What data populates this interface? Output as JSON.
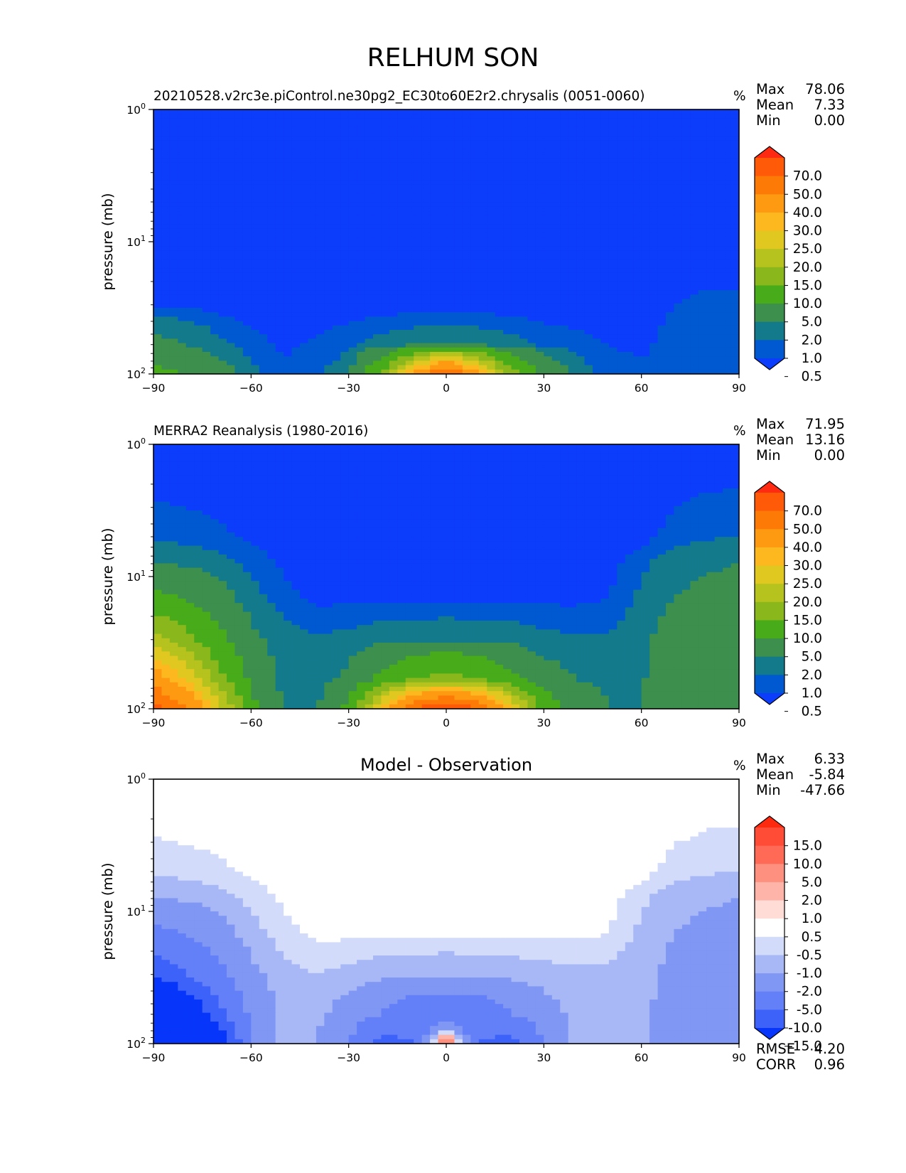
{
  "figure_title": "RELHUM SON",
  "chart_data": [
    {
      "type": "heatmap",
      "panel": "test",
      "title": "20210528.v2rc3e.piControl.ne30pg2_EC30to60E2r2.chrysalis (0051-0060)",
      "units": "%",
      "xlabel": "",
      "ylabel": "pressure (mb)",
      "xlim": [
        -90,
        90
      ],
      "ylim": [
        100,
        1
      ],
      "y_scale": "log",
      "xticks": [
        "−90",
        "−60",
        "−30",
        "0",
        "30",
        "60",
        "90"
      ],
      "yticks": [
        "10^0",
        "10^1",
        "10^2"
      ],
      "stats": [
        {
          "label": "Max",
          "value": "78.06"
        },
        {
          "label": "Mean",
          "value": "7.33"
        },
        {
          "label": "Min",
          "value": "0.00"
        }
      ],
      "colorbar": {
        "levels": [
          "70.0",
          "50.0",
          "40.0",
          "30.0",
          "25.0",
          "20.0",
          "15.0",
          "10.0",
          "5.0",
          "2.0",
          "1.0",
          "0.5"
        ],
        "colors": [
          "#0c3dfa",
          "#0059d1",
          "#137a8c",
          "#3c8f4c",
          "#48ab1a",
          "#8ab81c",
          "#b6c21d",
          "#e0c820",
          "#fdb81f",
          "#fd9a12",
          "#fe7a06",
          "#fe5a08",
          "#fe2a12"
        ],
        "extend": "both"
      },
      "field": {
        "x": [
          -90,
          -80,
          -70,
          -60,
          -50,
          -40,
          -30,
          -20,
          -10,
          0,
          10,
          20,
          30,
          40,
          50,
          60,
          70,
          80,
          90
        ],
        "y": [
          100,
          60,
          30,
          10,
          1
        ],
        "values": [
          [
            6,
            5,
            3,
            1.2,
            0.6,
            0.8,
            1.6,
            9,
            30,
            52,
            30,
            12,
            4,
            1.5,
            0.7,
            0.6,
            0.8,
            0.9,
            1
          ],
          [
            2.5,
            2,
            1.2,
            0.7,
            0.4,
            0.6,
            0.8,
            1.3,
            1.6,
            1.7,
            1.6,
            1.3,
            0.8,
            0.7,
            0.5,
            0.4,
            0.7,
            0.8,
            0.8
          ],
          [
            0.4,
            0.4,
            0.3,
            0.2,
            0.2,
            0.2,
            0.2,
            0.2,
            0.2,
            0.2,
            0.2,
            0.2,
            0.2,
            0.2,
            0.2,
            0.2,
            0.5,
            0.6,
            0.6
          ],
          [
            0.1,
            0.1,
            0.1,
            0.1,
            0.1,
            0.1,
            0.1,
            0.1,
            0.1,
            0.1,
            0.1,
            0.1,
            0.1,
            0.1,
            0.1,
            0.1,
            0.1,
            0.2,
            0.2
          ],
          [
            0.05,
            0.05,
            0.05,
            0.05,
            0.05,
            0.05,
            0.05,
            0.05,
            0.05,
            0.05,
            0.05,
            0.05,
            0.05,
            0.05,
            0.05,
            0.05,
            0.05,
            0.05,
            0.05
          ]
        ]
      }
    },
    {
      "type": "heatmap",
      "panel": "reference",
      "title": "MERRA2 Reanalysis (1980-2016)",
      "units": "%",
      "xlabel": "",
      "ylabel": "pressure (mb)",
      "xlim": [
        -90,
        90
      ],
      "ylim": [
        100,
        1
      ],
      "y_scale": "log",
      "xticks": [
        "−90",
        "−60",
        "−30",
        "0",
        "30",
        "60",
        "90"
      ],
      "yticks": [
        "10^0",
        "10^1",
        "10^2"
      ],
      "stats": [
        {
          "label": "Max",
          "value": "71.95"
        },
        {
          "label": "Mean",
          "value": "13.16"
        },
        {
          "label": "Min",
          "value": "0.00"
        }
      ],
      "colorbar": {
        "levels": [
          "70.0",
          "50.0",
          "40.0",
          "30.0",
          "25.0",
          "20.0",
          "15.0",
          "10.0",
          "5.0",
          "2.0",
          "1.0",
          "0.5"
        ],
        "colors": [
          "#0c3dfa",
          "#0059d1",
          "#137a8c",
          "#3c8f4c",
          "#48ab1a",
          "#8ab81c",
          "#b6c21d",
          "#e0c820",
          "#fdb81f",
          "#fd9a12",
          "#fe7a06",
          "#fe5a08",
          "#fe2a12"
        ],
        "extend": "both"
      },
      "field": {
        "x": [
          -90,
          -80,
          -70,
          -60,
          -50,
          -40,
          -30,
          -20,
          -10,
          0,
          10,
          20,
          30,
          40,
          50,
          60,
          70,
          80,
          90
        ],
        "y": [
          100,
          60,
          30,
          15,
          8,
          5,
          1
        ],
        "values": [
          [
            55,
            40,
            22,
            6,
            1.8,
            1.8,
            6,
            25,
            50,
            60,
            50,
            25,
            8,
            3,
            2,
            2,
            4,
            4,
            4
          ],
          [
            35,
            25,
            12,
            4,
            1.5,
            1.3,
            2.5,
            6,
            10,
            12,
            10,
            6,
            3,
            2,
            1.8,
            1.8,
            3.5,
            3.5,
            3.5
          ],
          [
            18,
            12,
            6,
            2.5,
            1.3,
            1.1,
            1.2,
            1.5,
            1.6,
            1.7,
            1.6,
            1.5,
            1.2,
            1.1,
            1.1,
            1.5,
            3,
            3,
            3
          ],
          [
            6,
            5,
            3,
            1.3,
            0.7,
            0.4,
            0.4,
            0.4,
            0.4,
            0.4,
            0.4,
            0.4,
            0.4,
            0.4,
            0.5,
            1.2,
            2,
            2.5,
            2.5
          ],
          [
            2,
            1.8,
            1.3,
            0.8,
            0.4,
            0.2,
            0.2,
            0.2,
            0.2,
            0.2,
            0.2,
            0.2,
            0.2,
            0.2,
            0.3,
            0.8,
            1.5,
            1.8,
            2
          ],
          [
            0.8,
            0.7,
            0.6,
            0.4,
            0.2,
            0.1,
            0.1,
            0.1,
            0.1,
            0.1,
            0.1,
            0.1,
            0.1,
            0.1,
            0.1,
            0.3,
            0.7,
            0.9,
            1
          ],
          [
            0.05,
            0.05,
            0.05,
            0.05,
            0.05,
            0.05,
            0.05,
            0.05,
            0.05,
            0.05,
            0.05,
            0.05,
            0.05,
            0.05,
            0.05,
            0.05,
            0.05,
            0.05,
            0.05
          ]
        ]
      }
    },
    {
      "type": "heatmap",
      "panel": "difference",
      "title": "Model - Observation",
      "units": "%",
      "xlabel": "",
      "ylabel": "pressure (mb)",
      "xlim": [
        -90,
        90
      ],
      "ylim": [
        100,
        1
      ],
      "y_scale": "log",
      "xticks": [
        "−90",
        "−60",
        "−30",
        "0",
        "30",
        "60",
        "90"
      ],
      "yticks": [
        "10^0",
        "10^1",
        "10^2"
      ],
      "stats": [
        {
          "label": "Max",
          "value": "6.33"
        },
        {
          "label": "Mean",
          "value": "-5.84"
        },
        {
          "label": "Min",
          "value": "-47.66"
        }
      ],
      "extra_stats": [
        {
          "label": "RMSE",
          "value": "4.20"
        },
        {
          "label": "CORR",
          "value": "0.96"
        }
      ],
      "colorbar": {
        "levels": [
          "15.0",
          "10.0",
          "5.0",
          "2.0",
          "1.0",
          "0.5",
          "-0.5",
          "-1.0",
          "-2.0",
          "-5.0",
          "-10.0",
          "-15.0"
        ],
        "colors": [
          "#0736fa",
          "#3c62fa",
          "#6380f8",
          "#8097f4",
          "#a8b8f6",
          "#d3dbfb",
          "#ffffff",
          "#ffdcd6",
          "#feb4a8",
          "#fe9080",
          "#fe6a55",
          "#fe4c36",
          "#fe2a10"
        ],
        "extend": "both"
      },
      "field": {
        "x": [
          -90,
          -80,
          -70,
          -60,
          -50,
          -40,
          -30,
          -20,
          -10,
          0,
          10,
          20,
          30,
          40,
          50,
          60,
          70,
          80,
          90
        ],
        "y": [
          100,
          60,
          30,
          15,
          8,
          5,
          1
        ],
        "values": [
          [
            -40,
            -35,
            -20,
            -5,
            -1.5,
            -2,
            -5,
            -12,
            -10,
            6,
            -10,
            -12,
            -5,
            -1.5,
            -1,
            -1.5,
            -3,
            -3,
            -3
          ],
          [
            -30,
            -22,
            -12,
            -4,
            -1.5,
            -1.5,
            -3,
            -5,
            -8,
            -8,
            -8,
            -5,
            -3,
            -1.5,
            -1.5,
            -1.5,
            -3,
            -3,
            -3
          ],
          [
            -15,
            -10,
            -6,
            -2.5,
            -1.2,
            -1,
            -1.2,
            -1.5,
            -1.6,
            -1.7,
            -1.6,
            -1.5,
            -1.3,
            -1.2,
            -1.2,
            -1.5,
            -2.5,
            -2.5,
            -2.5
          ],
          [
            -6,
            -5,
            -3,
            -1.3,
            -0.7,
            -0.4,
            -0.4,
            -0.4,
            -0.4,
            -0.4,
            -0.4,
            -0.4,
            -0.4,
            -0.4,
            -0.5,
            -1.2,
            -2,
            -2.5,
            -2.5
          ],
          [
            -2,
            -1.8,
            -1.3,
            -0.8,
            -0.4,
            -0.2,
            -0.2,
            -0.2,
            -0.2,
            -0.2,
            -0.2,
            -0.2,
            -0.2,
            -0.2,
            -0.3,
            -0.8,
            -1.5,
            -1.8,
            -2
          ],
          [
            -0.8,
            -0.7,
            -0.6,
            -0.4,
            -0.2,
            -0.1,
            -0.1,
            -0.1,
            -0.1,
            -0.1,
            -0.1,
            -0.1,
            -0.1,
            -0.1,
            -0.1,
            -0.3,
            -0.7,
            -0.9,
            -1
          ],
          [
            0,
            0,
            0,
            0,
            0,
            0,
            0,
            0,
            0,
            0,
            0,
            0,
            0,
            0,
            0,
            0,
            0,
            0,
            0
          ]
        ]
      }
    }
  ]
}
